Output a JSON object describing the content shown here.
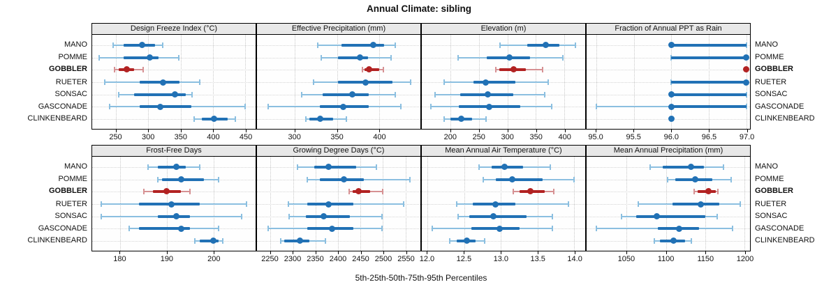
{
  "title": "Annual Climate: sibling",
  "caption": "5th-25th-50th-75th-95th Percentiles",
  "colors": {
    "series": "#2171B5",
    "series_light": "#8BBFE0",
    "highlight": "#B22222",
    "highlight_light": "#D69193",
    "header_bg": "#E8E8E8",
    "grid": "#C8C8C8",
    "border": "#000000"
  },
  "sites": [
    {
      "name": "MANO",
      "bold": false
    },
    {
      "name": "POMME",
      "bold": false
    },
    {
      "name": "GOBBLER",
      "bold": true
    },
    {
      "name": "RUETER",
      "bold": false
    },
    {
      "name": "SONSAC",
      "bold": false
    },
    {
      "name": "GASCONADE",
      "bold": false
    },
    {
      "name": "CLINKENBEARD",
      "bold": false
    }
  ],
  "percentiles_order": [
    "p5",
    "p25",
    "p50",
    "p75",
    "p95"
  ],
  "chart_data": [
    {
      "type": "scatter",
      "band": 0,
      "title": "Design Freeze Index (°C)",
      "xlim": [
        213,
        466
      ],
      "ticks": [
        250,
        300,
        350,
        400,
        450
      ],
      "tick_labels": [
        "250",
        "300",
        "350",
        "400",
        "450"
      ],
      "values": [
        [
          245,
          262,
          290,
          310,
          322
        ],
        [
          224,
          262,
          302,
          316,
          347
        ],
        [
          248,
          254,
          266,
          278,
          292
        ],
        [
          233,
          287,
          323,
          348,
          379
        ],
        [
          254,
          278,
          341,
          358,
          368
        ],
        [
          240,
          286,
          318,
          367,
          450
        ],
        [
          371,
          383,
          402,
          423,
          435
        ]
      ]
    },
    {
      "type": "scatter",
      "band": 0,
      "title": "Effective Precipitation (mm)",
      "xlim": [
        255,
        449
      ],
      "ticks": [
        300,
        350,
        400
      ],
      "tick_labels": [
        "300",
        "350",
        "400"
      ],
      "values": [
        [
          327,
          355,
          393,
          406,
          419
        ],
        [
          331,
          351,
          377,
          387,
          414
        ],
        [
          380,
          383,
          388,
          400,
          405
        ],
        [
          322,
          351,
          384,
          416,
          437
        ],
        [
          308,
          333,
          368,
          388,
          419
        ],
        [
          268,
          330,
          357,
          388,
          426
        ],
        [
          313,
          317,
          330,
          345,
          361
        ]
      ]
    },
    {
      "type": "scatter",
      "band": 0,
      "title": "Elevation (m)",
      "xlim": [
        149,
        437
      ],
      "ticks": [
        200,
        250,
        300,
        350,
        400
      ],
      "tick_labels": [
        "200",
        "250",
        "300",
        "350",
        "400"
      ],
      "values": [
        [
          287,
          335,
          368,
          392,
          420
        ],
        [
          213,
          264,
          303,
          340,
          397
        ],
        [
          280,
          285,
          311,
          333,
          362
        ],
        [
          188,
          240,
          261,
          314,
          372
        ],
        [
          172,
          217,
          265,
          310,
          365
        ],
        [
          165,
          214,
          268,
          322,
          378
        ],
        [
          188,
          200,
          219,
          238,
          262
        ]
      ]
    },
    {
      "type": "scatter",
      "band": 0,
      "title": "Fraction of Annual PPT as Rain",
      "xlim": [
        94.87,
        97.05
      ],
      "ticks": [
        95.0,
        95.5,
        96.0,
        96.5,
        97.0
      ],
      "tick_labels": [
        "95.0",
        "95.5",
        "96.0",
        "96.5",
        "97.0"
      ],
      "values": [
        [
          96,
          96,
          96,
          97,
          97
        ],
        [
          96,
          96,
          97,
          97,
          97
        ],
        [
          97,
          97,
          97,
          97,
          97
        ],
        [
          96,
          96,
          97,
          97,
          97
        ],
        [
          96,
          96,
          96,
          97,
          97
        ],
        [
          95,
          96,
          96,
          97,
          97
        ],
        [
          96,
          96,
          96,
          96,
          96
        ]
      ]
    },
    {
      "type": "scatter",
      "band": 1,
      "title": "Frost-Free Days",
      "xlim": [
        174,
        209
      ],
      "ticks": [
        180,
        190,
        200
      ],
      "tick_labels": [
        "180",
        "190",
        "200"
      ],
      "values": [
        [
          186,
          188,
          192,
          194,
          197
        ],
        [
          188,
          189,
          193,
          198,
          201
        ],
        [
          185,
          187,
          190,
          193,
          195
        ],
        [
          176,
          184,
          191,
          197,
          207
        ],
        [
          176,
          188,
          192,
          195,
          206
        ],
        [
          182,
          184,
          193,
          195,
          201
        ],
        [
          196,
          197,
          200,
          201,
          202
        ]
      ]
    },
    {
      "type": "scatter",
      "band": 1,
      "title": "Growing Degree Days (°C)",
      "xlim": [
        2220,
        2583
      ],
      "ticks": [
        2250,
        2300,
        2350,
        2400,
        2450,
        2500,
        2550
      ],
      "tick_labels": [
        "2250",
        "2300",
        "2350",
        "2400",
        "2450",
        "2500",
        "2550"
      ],
      "values": [
        [
          2310,
          2347,
          2379,
          2441,
          2486
        ],
        [
          2332,
          2360,
          2413,
          2457,
          2560
        ],
        [
          2425,
          2432,
          2446,
          2472,
          2500
        ],
        [
          2290,
          2332,
          2379,
          2434,
          2546
        ],
        [
          2292,
          2329,
          2368,
          2426,
          2497
        ],
        [
          2245,
          2332,
          2387,
          2434,
          2497
        ],
        [
          2272,
          2280,
          2316,
          2336,
          2372
        ]
      ]
    },
    {
      "type": "scatter",
      "band": 1,
      "title": "Mean Annual Air Temperature (°C)",
      "xlim": [
        11.92,
        14.15
      ],
      "ticks": [
        12.0,
        12.5,
        13.0,
        13.5,
        14.0
      ],
      "tick_labels": [
        "12.0",
        "12.5",
        "13.0",
        "13.5",
        "14.0"
      ],
      "values": [
        [
          12.7,
          12.87,
          13.05,
          13.3,
          13.67
        ],
        [
          12.76,
          12.93,
          13.15,
          13.57,
          14.0
        ],
        [
          13.17,
          13.25,
          13.4,
          13.6,
          13.72
        ],
        [
          12.4,
          12.62,
          12.93,
          13.2,
          13.92
        ],
        [
          12.42,
          12.57,
          12.9,
          13.35,
          13.7
        ],
        [
          12.06,
          12.6,
          12.98,
          13.25,
          13.7
        ],
        [
          12.3,
          12.4,
          12.53,
          12.65,
          12.78
        ]
      ]
    },
    {
      "type": "scatter",
      "band": 1,
      "title": "Mean Annual Precipitation (mm)",
      "xlim": [
        999,
        1207
      ],
      "ticks": [
        1050,
        1100,
        1150,
        1200
      ],
      "tick_labels": [
        "1050",
        "1100",
        "1150",
        "1200"
      ],
      "values": [
        [
          1080,
          1096,
          1132,
          1148,
          1173
        ],
        [
          1102,
          1112,
          1137,
          1159,
          1183
        ],
        [
          1136,
          1140,
          1154,
          1163,
          1166
        ],
        [
          1065,
          1108,
          1144,
          1168,
          1195
        ],
        [
          1043,
          1062,
          1088,
          1150,
          1165
        ],
        [
          1011,
          1090,
          1117,
          1142,
          1185
        ],
        [
          1085,
          1092,
          1110,
          1124,
          1132
        ]
      ]
    }
  ]
}
